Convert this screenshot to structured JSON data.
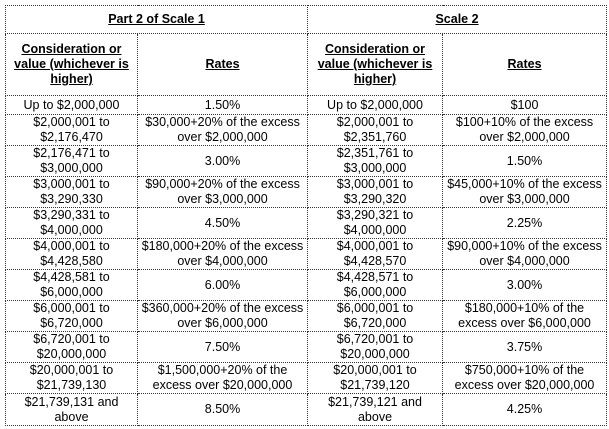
{
  "headers": {
    "scale1_title": "Part 2 of Scale 1",
    "scale2_title": "Scale 2",
    "consideration": "Consideration or value (whichever is higher)",
    "rates": "Rates"
  },
  "rows": [
    {
      "s1_range": "Up to $2,000,000",
      "s1_rate": "1.50%",
      "s2_range": "Up to $2,000,000",
      "s2_rate": "$100"
    },
    {
      "s1_range": "$2,000,001 to $2,176,470",
      "s1_rate": "$30,000+20% of the excess over $2,000,000",
      "s2_range": "$2,000,001 to $2,351,760",
      "s2_rate": "$100+10% of the excess over $2,000,000"
    },
    {
      "s1_range": "$2,176,471 to $3,000,000",
      "s1_rate": "3.00%",
      "s2_range": "$2,351,761 to $3,000,000",
      "s2_rate": "1.50%"
    },
    {
      "s1_range": "$3,000,001 to $3,290,330",
      "s1_rate": "$90,000+20% of the excess over $3,000,000",
      "s2_range": "$3,000,001 to $3,290,320",
      "s2_rate": "$45,000+10% of the excess over $3,000,000"
    },
    {
      "s1_range": "$3,290,331 to $4,000,000",
      "s1_rate": "4.50%",
      "s2_range": "$3,290,321 to $4,000,000",
      "s2_rate": "2.25%"
    },
    {
      "s1_range": "$4,000,001 to $4,428,580",
      "s1_rate": "$180,000+20% of the excess over $4,000,000",
      "s2_range": "$4,000,001 to $4,428,570",
      "s2_rate": "$90,000+10% of the excess over $4,000,000"
    },
    {
      "s1_range": "$4,428,581 to $6,000,000",
      "s1_rate": "6.00%",
      "s2_range": "$4,428,571 to $6,000,000",
      "s2_rate": "3.00%"
    },
    {
      "s1_range": "$6,000,001 to $6,720,000",
      "s1_rate": "$360,000+20% of the excess over $6,000,000",
      "s2_range": "$6,000,001 to $6,720,000",
      "s2_rate": "$180,000+10% of the excess over $6,000,000"
    },
    {
      "s1_range": "$6,720,001 to $20,000,000",
      "s1_rate": "7.50%",
      "s2_range": "$6,720,001 to $20,000,000",
      "s2_rate": "3.75%"
    },
    {
      "s1_range": "$20,000,001 to $21,739,130",
      "s1_rate": "$1,500,000+20% of the excess over $20,000,000",
      "s2_range": "$20,000,001 to $21,739,120",
      "s2_rate": "$750,000+10% of the excess over $20,000,000"
    },
    {
      "s1_range": "$21,739,131 and above",
      "s1_rate": "8.50%",
      "s2_range": "$21,739,121 and above",
      "s2_rate": "4.25%"
    }
  ]
}
